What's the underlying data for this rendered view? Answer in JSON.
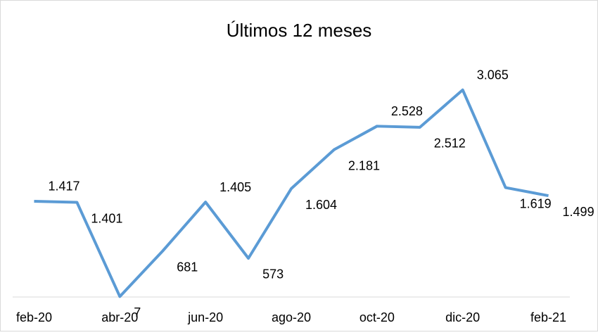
{
  "chart_data": {
    "type": "line",
    "title": "Últimos 12 meses",
    "categories": [
      "feb-20",
      null,
      "abr-20",
      null,
      "jun-20",
      null,
      "ago-20",
      null,
      "oct-20",
      null,
      "dic-20",
      null,
      "feb-21"
    ],
    "series": [
      {
        "color": "#5b9bd5",
        "values": [
          1417,
          1401,
          7,
          681,
          1405,
          573,
          1604,
          2181,
          2528,
          2512,
          3065,
          1619,
          1499
        ],
        "value_labels": [
          "1.417",
          "1.401",
          "7",
          "681",
          "1.405",
          "573",
          "1.604",
          "2.181",
          "2.528",
          "2.512",
          "3.065",
          "1.619",
          "1.499"
        ]
      }
    ],
    "ylim": [
      0,
      3500
    ]
  }
}
